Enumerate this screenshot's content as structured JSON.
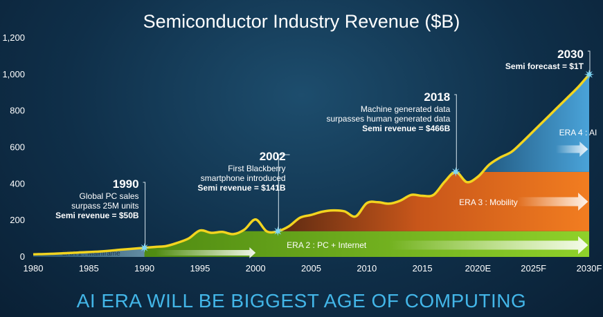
{
  "header": {
    "title": "Semiconductor Industry Revenue ($B)",
    "subtitle": "AI ERA WILL BE BIGGEST AGE OF COMPUTING"
  },
  "colors": {
    "background": "#0f2f49",
    "line": "#f2d41f",
    "marker": "#7fd6f5",
    "era1": "#9fc7dc",
    "era2": "#7cbf1e",
    "era3": "#f07a1f",
    "era4": "#3d97cf",
    "subtitle": "#43b6e8"
  },
  "chart_data": {
    "type": "area",
    "title": "Semiconductor Industry Revenue ($B)",
    "xlabel": "",
    "ylabel": "",
    "xlim": [
      1980,
      2030
    ],
    "ylim": [
      0,
      1200
    ],
    "grid": false,
    "y_ticks": [
      "0",
      "200",
      "400",
      "600",
      "800",
      "1,000",
      "1,200"
    ],
    "x_ticks": [
      "1980",
      "1985",
      "1990",
      "1995",
      "2000",
      "2005",
      "2010",
      "2015",
      "2020E",
      "2025F",
      "2030F"
    ],
    "series": [
      {
        "x": [
          1980,
          1982,
          1984,
          1986,
          1988,
          1990,
          1991,
          1992,
          1993,
          1994,
          1995,
          1996,
          1997,
          1998,
          1999,
          2000,
          2001,
          2002,
          2003,
          2004,
          2005,
          2006,
          2007,
          2008,
          2009,
          2010,
          2011,
          2012,
          2013,
          2014,
          2015,
          2016,
          2017,
          2018,
          2019,
          2020,
          2021,
          2022,
          2023,
          2024,
          2025,
          2026,
          2027,
          2028,
          2029,
          2030
        ],
        "values": [
          14,
          18,
          24,
          30,
          40,
          50,
          55,
          60,
          78,
          102,
          145,
          132,
          137,
          125,
          150,
          205,
          140,
          141,
          168,
          215,
          230,
          248,
          255,
          250,
          222,
          295,
          300,
          292,
          308,
          340,
          335,
          340,
          412,
          466,
          410,
          440,
          505,
          545,
          575,
          630,
          690,
          750,
          810,
          870,
          930,
          1000
        ]
      }
    ],
    "eras": [
      {
        "label": "ERA 1 : Mainframe",
        "from": 1980,
        "to": 2000,
        "level": 50
      },
      {
        "label": "ERA 2 : PC + Internet",
        "from": 1990,
        "to": 2030,
        "level": 141
      },
      {
        "label": "ERA 3 : Mobility",
        "from": 2002,
        "to": 2030,
        "level": 466
      },
      {
        "label": "ERA 4 : AI",
        "from": 2018,
        "to": 2030,
        "level": 1000
      }
    ],
    "annotations": [
      {
        "x": 1990,
        "y": 50,
        "year": "1990",
        "lines": [
          "Global PC sales",
          "surpass 25M units"
        ],
        "bold": "Semi revenue = $50B"
      },
      {
        "x": 2002,
        "y": 141,
        "year": "2002",
        "lines": [
          "First Blackberry",
          "smartphone introduced"
        ],
        "bold": "Semi revenue = $141B"
      },
      {
        "x": 2018,
        "y": 466,
        "year": "2018",
        "lines": [
          "Machine generated data",
          "surpasses human generated data"
        ],
        "bold": "Semi revenue = $466B"
      },
      {
        "x": 2030,
        "y": 1000,
        "year": "2030",
        "lines": [],
        "bold": "Semi forecast = $1T"
      }
    ]
  }
}
